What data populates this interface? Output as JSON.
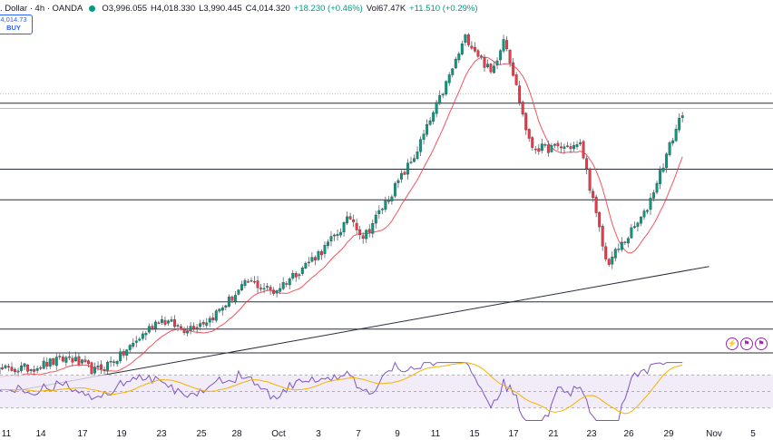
{
  "header": {
    "symbol": ". Dollar · 4h · OANDA",
    "open": "O3,996.055",
    "high": "H4,018.330",
    "low": "L3,990.445",
    "close": "C4,014.320",
    "change": "+18.230 (+0.46%)",
    "volume": "Vol67.47K",
    "vol_change": "+11.510 (+0.29%)"
  },
  "trade_button": {
    "price": "4,014.73",
    "label": "BUY"
  },
  "indicator_icons": [
    "lightning-icon",
    "flag-icon",
    "flag-icon"
  ],
  "colors": {
    "up": "#089981",
    "down": "#f23645",
    "ma": "#f23645",
    "rsi": "#7e57c2",
    "rsi_ma": "#f4b400",
    "rsi_band": "#ede7f6",
    "level_line": "#2a2e39",
    "current_price_line": "#089981"
  },
  "chart_data": {
    "type": "candlestick",
    "x_tick_labels": [
      "11",
      "14",
      "17",
      "19",
      "23",
      "25",
      "28",
      "Oct",
      "3",
      "7",
      "9",
      "11",
      "15",
      "17",
      "21",
      "23",
      "26",
      "29",
      "Nov",
      "5"
    ],
    "horizontal_levels_approx": [
      4022,
      3925,
      3880,
      3730,
      3690,
      3655
    ],
    "current_price": 4014.32,
    "trendline": {
      "from": {
        "date": "Sep 12",
        "price": 3600
      },
      "to": {
        "date": "Nov 5",
        "price": 3782
      }
    },
    "price_path_approx": [
      {
        "date": "Sep 9",
        "price": 3628
      },
      {
        "date": "Sep 13",
        "price": 3633
      },
      {
        "date": "Sep 16",
        "price": 3648
      },
      {
        "date": "Sep 18",
        "price": 3628
      },
      {
        "date": "Sep 20",
        "price": 3650
      },
      {
        "date": "Sep 23",
        "price": 3705
      },
      {
        "date": "Sep 25",
        "price": 3690
      },
      {
        "date": "Sep 27",
        "price": 3705
      },
      {
        "date": "Sep 30",
        "price": 3760
      },
      {
        "date": "Oct 2",
        "price": 3745
      },
      {
        "date": "Oct 6",
        "price": 3810
      },
      {
        "date": "Oct 8",
        "price": 3855
      },
      {
        "date": "Oct 9",
        "price": 3825
      },
      {
        "date": "Oct 13",
        "price": 3945
      },
      {
        "date": "Oct 15",
        "price": 4030
      },
      {
        "date": "Oct 17",
        "price": 4120
      },
      {
        "date": "Oct 19",
        "price": 4065
      },
      {
        "date": "Oct 20",
        "price": 4122
      },
      {
        "date": "Oct 22",
        "price": 3960
      },
      {
        "date": "Oct 23",
        "price": 3955
      },
      {
        "date": "Oct 26",
        "price": 3960
      },
      {
        "date": "Oct 28",
        "price": 3785
      },
      {
        "date": "Oct 30",
        "price": 3835
      },
      {
        "date": "Oct 31",
        "price": 3860
      },
      {
        "date": "Nov 3",
        "price": 4014
      }
    ],
    "rsi": {
      "levels": [
        70,
        50,
        30
      ]
    }
  }
}
